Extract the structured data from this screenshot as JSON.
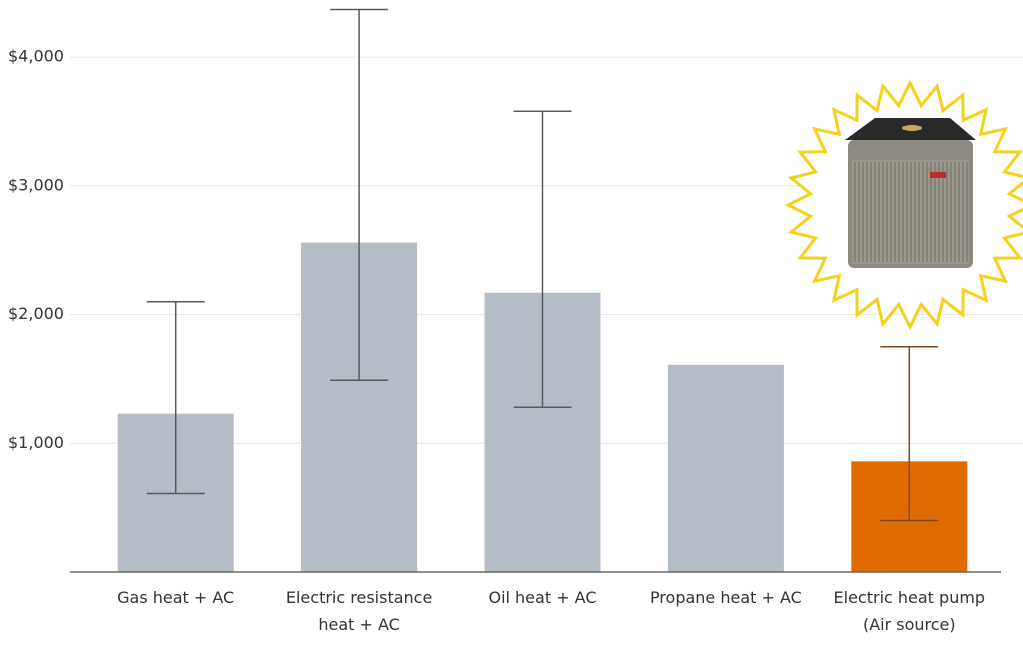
{
  "chart_data": {
    "type": "bar",
    "categories": [
      "Gas heat + AC",
      "Electric resistance heat + AC",
      "Oil heat + AC",
      "Propane heat + AC",
      "Electric heat pump (Air source)"
    ],
    "values": [
      1230,
      2560,
      2170,
      1610,
      860
    ],
    "range_low": [
      610,
      1490,
      1280,
      null,
      400
    ],
    "range_high": [
      2100,
      4370,
      3580,
      null,
      1750
    ],
    "colors": [
      "#b4bcc5",
      "#b4bcc5",
      "#b4bcc5",
      "#b4bcc5",
      "#e06c00"
    ],
    "range_colors": [
      "#5a5a5a",
      "#5a5a5a",
      "#5a5a5a",
      "#5a5a5a",
      "#7a4a22"
    ],
    "ylim": [
      0,
      4444
    ],
    "yticks": [
      {
        "value": 1000,
        "label": "$1,000"
      },
      {
        "value": 2000,
        "label": "$2,000"
      },
      {
        "value": 3000,
        "label": "$3,000"
      },
      {
        "value": 4000,
        "label": "$4,000"
      }
    ],
    "grid": true
  }
}
